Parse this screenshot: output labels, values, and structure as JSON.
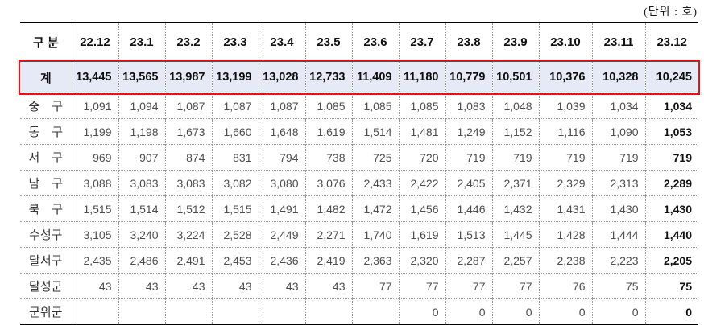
{
  "unit_label": "(단위 : 호)",
  "colors": {
    "highlight_border": "#f00d0d",
    "highlight_bg": "#e6eaf6",
    "table_rule": "#000000"
  },
  "table": {
    "columns": [
      "구 분",
      "22.12",
      "23.1",
      "23.2",
      "23.3",
      "23.4",
      "23.5",
      "23.6",
      "23.7",
      "23.8",
      "23.9",
      "23.10",
      "23.11",
      "23.12"
    ],
    "total_row": {
      "label": "계",
      "values": [
        "13,445",
        "13,565",
        "13,987",
        "13,199",
        "13,028",
        "12,733",
        "11,409",
        "11,180",
        "10,779",
        "10,501",
        "10,376",
        "10,328",
        "10,245"
      ]
    },
    "rows": [
      {
        "label": "중　구",
        "values": [
          "1,091",
          "1,094",
          "1,087",
          "1,087",
          "1,087",
          "1,085",
          "1,085",
          "1,085",
          "1,083",
          "1,048",
          "1,039",
          "1,034",
          "1,034"
        ]
      },
      {
        "label": "동　구",
        "values": [
          "1,199",
          "1,198",
          "1,673",
          "1,660",
          "1,648",
          "1,619",
          "1,514",
          "1,481",
          "1,249",
          "1,152",
          "1,116",
          "1,090",
          "1,053"
        ]
      },
      {
        "label": "서　구",
        "values": [
          "969",
          "907",
          "874",
          "831",
          "794",
          "738",
          "725",
          "720",
          "719",
          "719",
          "719",
          "719",
          "719"
        ]
      },
      {
        "label": "남　구",
        "values": [
          "3,088",
          "3,083",
          "3,083",
          "3,082",
          "3,080",
          "3,076",
          "2,433",
          "2,422",
          "2,405",
          "2,371",
          "2,329",
          "2,313",
          "2,289"
        ]
      },
      {
        "label": "북　구",
        "values": [
          "1,515",
          "1,514",
          "1,512",
          "1,515",
          "1,491",
          "1,482",
          "1,472",
          "1,456",
          "1,446",
          "1,432",
          "1,431",
          "1,430",
          "1,430"
        ]
      },
      {
        "label": "수성구",
        "values": [
          "3,105",
          "3,240",
          "3,224",
          "2,528",
          "2,449",
          "2,271",
          "1,740",
          "1,619",
          "1,513",
          "1,445",
          "1,428",
          "1,444",
          "1,440"
        ]
      },
      {
        "label": "달서구",
        "values": [
          "2,435",
          "2,486",
          "2,491",
          "2,453",
          "2,436",
          "2,419",
          "2,363",
          "2,320",
          "2,287",
          "2,257",
          "2,238",
          "2,223",
          "2,205"
        ]
      },
      {
        "label": "달성군",
        "values": [
          "43",
          "43",
          "43",
          "43",
          "43",
          "43",
          "77",
          "77",
          "77",
          "77",
          "76",
          "75",
          "75"
        ]
      },
      {
        "label": "군위군",
        "values": [
          "",
          "",
          "",
          "",
          "",
          "",
          "",
          "0",
          "0",
          "0",
          "0",
          "0",
          "0"
        ]
      }
    ]
  }
}
